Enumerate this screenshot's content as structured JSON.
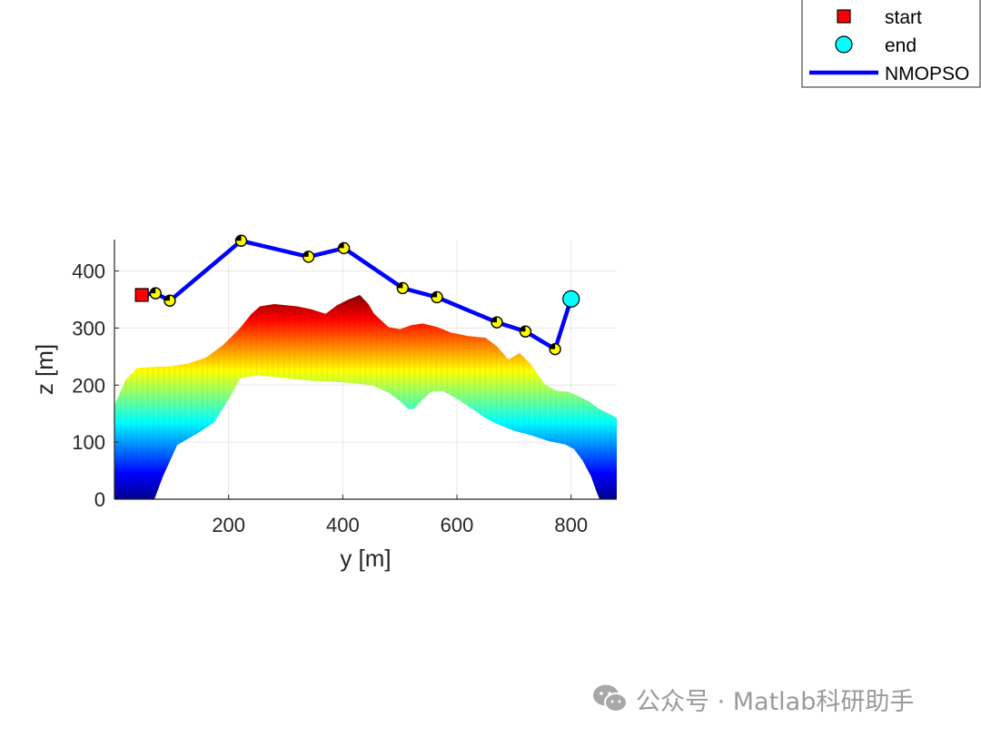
{
  "chart_data": {
    "type": "line",
    "xlabel": "y [m]",
    "ylabel": "z [m]",
    "xlim": [
      0,
      880
    ],
    "ylim": [
      0,
      455
    ],
    "xticks": [
      200,
      400,
      600,
      800
    ],
    "yticks": [
      0,
      100,
      200,
      300,
      400
    ],
    "grid": true,
    "legend_position": "top-right",
    "legend": [
      {
        "label": "start",
        "marker": "square",
        "color": "#ff0000"
      },
      {
        "label": "end",
        "marker": "circle",
        "color": "#00ffff"
      },
      {
        "label": "NMOPSO",
        "marker": "line",
        "color": "#0000ff"
      }
    ],
    "start": {
      "y": 48,
      "z": 358
    },
    "end": {
      "y": 800,
      "z": 351
    },
    "series": [
      {
        "name": "NMOPSO",
        "color": "#0000ff",
        "points": [
          [
            48,
            358
          ],
          [
            72,
            361
          ],
          [
            97,
            348
          ],
          [
            222,
            453
          ],
          [
            340,
            425
          ],
          [
            402,
            440
          ],
          [
            505,
            370
          ],
          [
            565,
            354
          ],
          [
            670,
            310
          ],
          [
            720,
            294
          ],
          [
            772,
            263
          ],
          [
            800,
            351
          ]
        ]
      }
    ],
    "terrain": {
      "colormap": "jet",
      "z_range": [
        0,
        360
      ],
      "top_profile": [
        [
          0,
          165
        ],
        [
          20,
          210
        ],
        [
          40,
          230
        ],
        [
          70,
          232
        ],
        [
          100,
          233
        ],
        [
          130,
          238
        ],
        [
          160,
          248
        ],
        [
          190,
          270
        ],
        [
          220,
          300
        ],
        [
          240,
          325
        ],
        [
          255,
          338
        ],
        [
          280,
          342
        ],
        [
          300,
          340
        ],
        [
          320,
          338
        ],
        [
          345,
          333
        ],
        [
          370,
          325
        ],
        [
          390,
          340
        ],
        [
          410,
          350
        ],
        [
          430,
          358
        ],
        [
          445,
          342
        ],
        [
          455,
          325
        ],
        [
          480,
          302
        ],
        [
          500,
          298
        ],
        [
          520,
          305
        ],
        [
          540,
          308
        ],
        [
          565,
          302
        ],
        [
          590,
          292
        ],
        [
          620,
          286
        ],
        [
          650,
          283
        ],
        [
          670,
          268
        ],
        [
          690,
          245
        ],
        [
          710,
          256
        ],
        [
          730,
          236
        ],
        [
          755,
          200
        ],
        [
          775,
          190
        ],
        [
          795,
          188
        ],
        [
          810,
          182
        ],
        [
          830,
          172
        ],
        [
          850,
          158
        ],
        [
          870,
          148
        ],
        [
          880,
          142
        ]
      ],
      "bottom_profile": [
        [
          0,
          0
        ],
        [
          70,
          0
        ],
        [
          85,
          40
        ],
        [
          110,
          95
        ],
        [
          150,
          118
        ],
        [
          175,
          135
        ],
        [
          200,
          175
        ],
        [
          220,
          212
        ],
        [
          250,
          217
        ],
        [
          300,
          212
        ],
        [
          350,
          207
        ],
        [
          400,
          205
        ],
        [
          450,
          200
        ],
        [
          480,
          187
        ],
        [
          500,
          172
        ],
        [
          515,
          158
        ],
        [
          525,
          158
        ],
        [
          540,
          175
        ],
        [
          555,
          188
        ],
        [
          575,
          190
        ],
        [
          600,
          176
        ],
        [
          630,
          156
        ],
        [
          650,
          142
        ],
        [
          670,
          132
        ],
        [
          700,
          120
        ],
        [
          730,
          112
        ],
        [
          760,
          102
        ],
        [
          790,
          96
        ],
        [
          805,
          88
        ],
        [
          820,
          68
        ],
        [
          835,
          40
        ],
        [
          845,
          12
        ],
        [
          850,
          0
        ],
        [
          880,
          0
        ]
      ]
    }
  },
  "watermark": {
    "text": "公众号 · Matlab科研助手",
    "icon": "wechat-icon"
  }
}
